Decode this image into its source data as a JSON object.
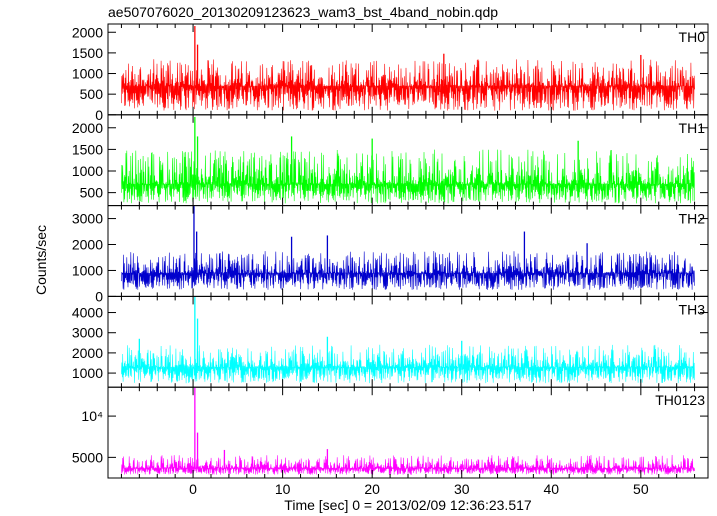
{
  "chart_data": {
    "type": "line",
    "title": "ae507076020_20130209123623_wam3_bst_4band_nobin.qdp",
    "xlabel": "Time [sec] 0 = 2013/02/09 12:36:23.517",
    "ylabel": "Counts/sec",
    "xlim": [
      -9.5,
      57.5
    ],
    "x_ticks": [
      0,
      10,
      20,
      30,
      40,
      50
    ],
    "grid": false,
    "x_data_range": [
      -8,
      56
    ],
    "panels": [
      {
        "name": "TH0",
        "color": "#ff0000",
        "ylim": [
          0,
          2200
        ],
        "y_ticks": [
          0,
          500,
          1000,
          1500,
          2000
        ],
        "y_tick_labels": [
          "0",
          "500",
          "1000",
          "1500",
          "2000"
        ],
        "baseline": 700,
        "noise_range": [
          100,
          1350
        ],
        "spikes": [
          {
            "x": 0.2,
            "y": 2150
          },
          {
            "x": 0.5,
            "y": 1700
          },
          {
            "x": 28,
            "y": 1480
          },
          {
            "x": 50,
            "y": 1450
          }
        ]
      },
      {
        "name": "TH1",
        "color": "#00ff00",
        "ylim": [
          200,
          2300
        ],
        "y_ticks": [
          500,
          1000,
          1500,
          2000
        ],
        "y_tick_labels": [
          "500",
          "1000",
          "1500",
          "2000"
        ],
        "baseline": 700,
        "noise_range": [
          250,
          1500
        ],
        "spikes": [
          {
            "x": 0.2,
            "y": 2250
          },
          {
            "x": 0.5,
            "y": 1800
          },
          {
            "x": 11,
            "y": 1800
          },
          {
            "x": 20,
            "y": 1750
          },
          {
            "x": 43,
            "y": 1700
          }
        ]
      },
      {
        "name": "TH2",
        "color": "#0000cd",
        "ylim": [
          0,
          3500
        ],
        "y_ticks": [
          0,
          1000,
          2000,
          3000
        ],
        "y_tick_labels": [
          "0",
          "1000",
          "2000",
          "3000"
        ],
        "baseline": 900,
        "noise_range": [
          250,
          1750
        ],
        "spikes": [
          {
            "x": 0.1,
            "y": 3500
          },
          {
            "x": 0.4,
            "y": 2500
          },
          {
            "x": 11,
            "y": 2300
          },
          {
            "x": 15,
            "y": 2350
          },
          {
            "x": 37,
            "y": 2500
          },
          {
            "x": 44,
            "y": 2050
          }
        ]
      },
      {
        "name": "TH3",
        "color": "#00ffff",
        "ylim": [
          300,
          4800
        ],
        "y_ticks": [
          1000,
          2000,
          3000,
          4000
        ],
        "y_tick_labels": [
          "1000",
          "2000",
          "3000",
          "4000"
        ],
        "baseline": 1300,
        "noise_range": [
          500,
          2400
        ],
        "spikes": [
          {
            "x": 0.2,
            "y": 4800
          },
          {
            "x": 0.5,
            "y": 3700
          },
          {
            "x": -6,
            "y": 2700
          },
          {
            "x": 15,
            "y": 2800
          },
          {
            "x": 30,
            "y": 2600
          }
        ]
      },
      {
        "name": "TH0123",
        "color": "#ff00ff",
        "ylim": [
          2500,
          13500
        ],
        "y_ticks": [
          5000,
          10000
        ],
        "y_tick_labels": [
          "5000",
          "10⁴"
        ],
        "baseline": 3700,
        "noise_range": [
          2900,
          5300
        ],
        "spikes": [
          {
            "x": 0.2,
            "y": 13500
          },
          {
            "x": 0.5,
            "y": 8000
          },
          {
            "x": 3.5,
            "y": 5900
          },
          {
            "x": 15,
            "y": 6000
          }
        ]
      }
    ]
  }
}
